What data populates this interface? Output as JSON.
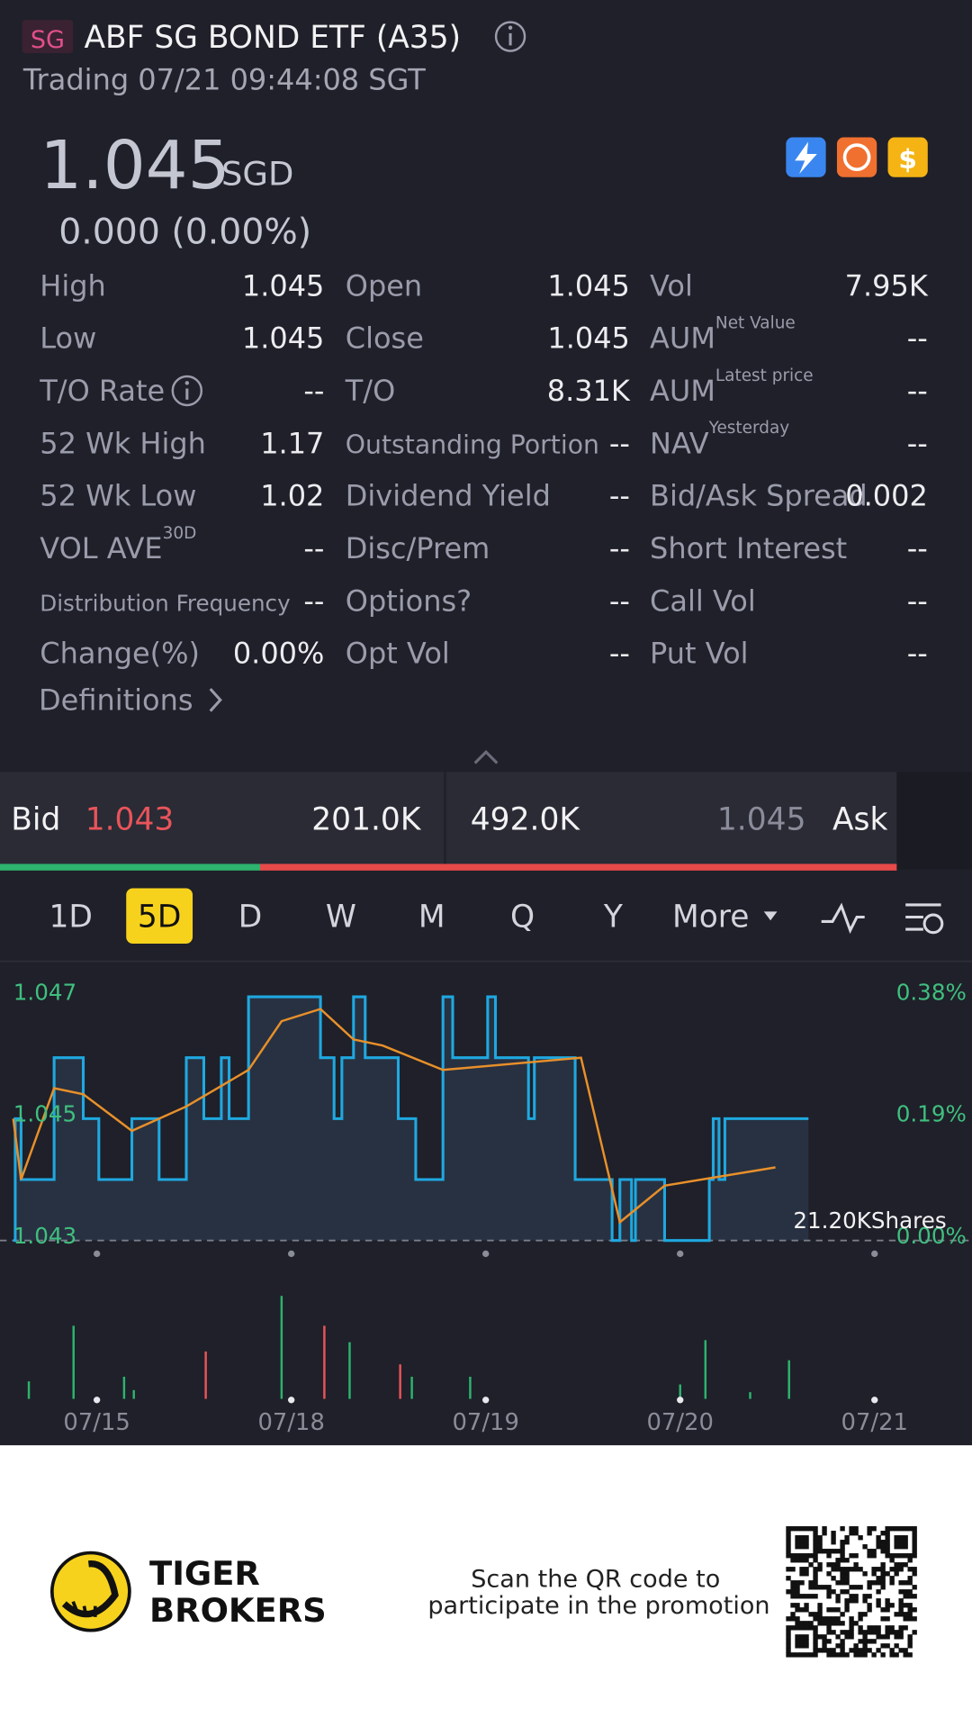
{
  "header": {
    "badge": "SG",
    "title": "ABF SG BOND ETF (A35)",
    "status": "Trading 07/21 09:44:08 SGT"
  },
  "quote": {
    "price": "1.045",
    "currency": "SGD",
    "change": "0.000 (0.00%)"
  },
  "stats": {
    "columns": [
      {
        "rows": [
          {
            "label": "High",
            "value": "1.045"
          },
          {
            "label": "Low",
            "value": "1.045"
          },
          {
            "label": "T/O Rate",
            "value": "--"
          },
          {
            "label": "52 Wk High",
            "value": "1.17"
          },
          {
            "label": "52 Wk Low",
            "value": "1.02"
          },
          {
            "label": "VOL AVE",
            "sup": "30D",
            "value": "--"
          },
          {
            "label": "Distribution Frequency",
            "value": "--"
          },
          {
            "label": "Change(%)",
            "value": "0.00%"
          }
        ]
      },
      {
        "rows": [
          {
            "label": "Open",
            "value": "1.045"
          },
          {
            "label": "Close",
            "value": "1.045"
          },
          {
            "label": "T/O",
            "value": "8.31K"
          },
          {
            "label": "Outstanding Portion",
            "value": "--"
          },
          {
            "label": "Dividend Yield",
            "value": "--"
          },
          {
            "label": "Disc/Prem",
            "value": "--"
          },
          {
            "label": "Options?",
            "value": "--"
          },
          {
            "label": "Opt Vol",
            "value": "--"
          }
        ]
      },
      {
        "rows": [
          {
            "label": "Vol",
            "value": "7.95K"
          },
          {
            "label": "AUM",
            "sup": "Net Value",
            "value": "--"
          },
          {
            "label": "AUM",
            "sup": "Latest price",
            "value": "--"
          },
          {
            "label": "NAV",
            "sup": "Yesterday",
            "value": "--"
          },
          {
            "label": "Bid/Ask Spread",
            "value": "0.002"
          },
          {
            "label": "Short Interest",
            "value": "--"
          },
          {
            "label": "Call Vol",
            "value": "--"
          },
          {
            "label": "Put Vol",
            "value": "--"
          }
        ]
      }
    ]
  },
  "definitions": "Definitions",
  "orderbook": {
    "bid_label": "Bid",
    "bid_price": "1.043",
    "bid_size": "201.0K",
    "ask_size": "492.0K",
    "ask_price": "1.045",
    "ask_label": "Ask"
  },
  "tabs": {
    "items": [
      "1D",
      "5D",
      "D",
      "W",
      "M",
      "Q",
      "Y",
      "More"
    ],
    "active": 1
  },
  "chart_data": {
    "type": "line",
    "xlim": [
      -0.43,
      4
    ],
    "xticks": [
      {
        "value": 0,
        "label": "07/15"
      },
      {
        "value": 1,
        "label": "07/18"
      },
      {
        "value": 2,
        "label": "07/19"
      },
      {
        "value": 3,
        "label": "07/20"
      },
      {
        "value": 4,
        "label": "07/21"
      }
    ],
    "ylim": [
      1.043,
      1.047
    ],
    "yticks": [
      1.047,
      1.045,
      1.043
    ],
    "y2lim": [
      0,
      0.38
    ],
    "y2ticks": [
      {
        "value": 0.38,
        "label": "0.38%"
      },
      {
        "value": 0.19,
        "label": "0.19%"
      },
      {
        "value": 0,
        "label": "0.00%"
      }
    ],
    "series": [
      {
        "color": "#1fa8e0",
        "x": [
          -0.43,
          -0.42,
          -0.39,
          -0.22,
          -0.07,
          0.01,
          0.18,
          0.32,
          0.46,
          0.55,
          0.64,
          0.68,
          0.78,
          1.15,
          1.22,
          1.26,
          1.32,
          1.38,
          1.55,
          1.64,
          1.78,
          1.83,
          2.01,
          2.05,
          2.22,
          2.25,
          2.46,
          2.65,
          2.69,
          2.75,
          2.77,
          2.92,
          3.15,
          3.17,
          3.2,
          3.23,
          3.66
        ],
        "values": [
          1.043,
          1.045,
          1.044,
          1.046,
          1.045,
          1.044,
          1.045,
          1.044,
          1.046,
          1.045,
          1.046,
          1.045,
          1.047,
          1.046,
          1.045,
          1.046,
          1.047,
          1.046,
          1.045,
          1.044,
          1.047,
          1.046,
          1.047,
          1.046,
          1.045,
          1.046,
          1.044,
          1.043,
          1.044,
          1.043,
          1.044,
          1.043,
          1.044,
          1.045,
          1.044,
          1.045,
          1.045
        ]
      },
      {
        "color": "#e8902a",
        "x": [
          -0.43,
          -0.39,
          -0.22,
          -0.07,
          0.18,
          0.46,
          0.78,
          0.95,
          1.15,
          1.32,
          1.47,
          1.78,
          2.49,
          2.69,
          2.92,
          3.49
        ],
        "values": [
          1.045,
          1.044,
          1.0455,
          1.0454,
          1.0448,
          1.0452,
          1.0458,
          1.0466,
          1.0468,
          1.0463,
          1.0462,
          1.0458,
          1.046,
          1.0433,
          1.0439,
          1.0442
        ]
      }
    ],
    "volume_label": "21.20KShares",
    "volume": {
      "ylim": [
        0,
        20
      ],
      "x": [
        -0.35,
        -0.12,
        0.14,
        0.19,
        0.56,
        0.95,
        1.17,
        1.3,
        1.56,
        1.62,
        1.92,
        3.0,
        3.13,
        3.36,
        3.56
      ],
      "values": [
        3.4,
        14.2,
        4.3,
        1.7,
        9.2,
        20.0,
        14.2,
        11.0,
        6.7,
        4.3,
        4.3,
        2.8,
        11.4,
        1.3,
        7.5
      ],
      "colors": [
        "#2db36e",
        "#2db36e",
        "#2db36e",
        "#2db36e",
        "#e8545a",
        "#2db36e",
        "#e8545a",
        "#2db36e",
        "#e8545a",
        "#2db36e",
        "#2db36e",
        "#2db36e",
        "#2db36e",
        "#2db36e",
        "#2db36e"
      ]
    }
  },
  "footer": {
    "brand_line1": "TIGER",
    "brand_line2": "BROKERS",
    "promo_line1": "Scan the QR code to",
    "promo_line2": "participate in the promotion"
  }
}
